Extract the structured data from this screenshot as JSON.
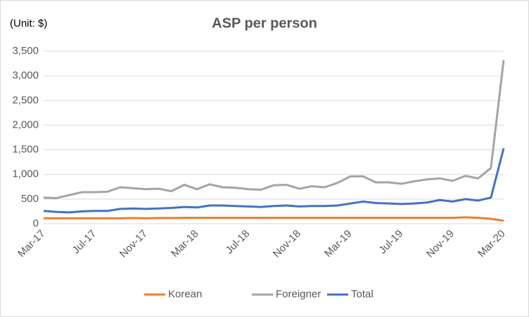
{
  "chart_data": {
    "type": "line",
    "title": "ASP per person",
    "subtitle": "(Unit: $)",
    "categories": [
      "Mar-17",
      null,
      null,
      null,
      "Jul-17",
      null,
      null,
      null,
      "Nov-17",
      null,
      null,
      null,
      "Mar-18",
      null,
      null,
      null,
      "Jul-18",
      null,
      null,
      null,
      "Nov-18",
      null,
      null,
      null,
      "Mar-19",
      null,
      null,
      null,
      "Jul-19",
      null,
      null,
      null,
      "Nov-19",
      null,
      null,
      null,
      "Mar-20"
    ],
    "series": [
      {
        "name": "Korean",
        "color": "#ed7d31",
        "values": [
          110,
          110,
          110,
          110,
          110,
          110,
          110,
          115,
          110,
          115,
          115,
          120,
          120,
          120,
          120,
          120,
          120,
          120,
          120,
          120,
          120,
          120,
          120,
          120,
          120,
          120,
          120,
          120,
          120,
          120,
          120,
          120,
          120,
          130,
          120,
          100,
          60
        ]
      },
      {
        "name": "Foreigner",
        "color": "#a5a5a5",
        "values": [
          530,
          520,
          580,
          640,
          640,
          650,
          740,
          720,
          700,
          710,
          660,
          790,
          700,
          800,
          740,
          730,
          700,
          690,
          780,
          790,
          710,
          760,
          740,
          830,
          960,
          960,
          840,
          840,
          810,
          860,
          900,
          920,
          870,
          970,
          920,
          1130,
          3320
        ]
      },
      {
        "name": "Total",
        "color": "#4472c4",
        "values": [
          260,
          240,
          230,
          250,
          260,
          260,
          300,
          310,
          300,
          310,
          320,
          340,
          330,
          370,
          370,
          360,
          350,
          340,
          360,
          370,
          350,
          360,
          360,
          370,
          410,
          450,
          420,
          410,
          400,
          410,
          430,
          480,
          450,
          500,
          470,
          530,
          1530
        ]
      }
    ],
    "ylim": [
      0,
      3500
    ],
    "yticks": [
      0,
      500,
      {
        "value": 1000,
        "label": "1,000"
      },
      {
        "value": 1500,
        "label": "1,500"
      },
      {
        "value": 2000,
        "label": "2,000"
      },
      {
        "value": 2500,
        "label": "2,500"
      },
      {
        "value": 3000,
        "label": "3,000"
      },
      {
        "value": 3500,
        "label": "3,500"
      }
    ],
    "grid": true,
    "legend": "bottom"
  }
}
